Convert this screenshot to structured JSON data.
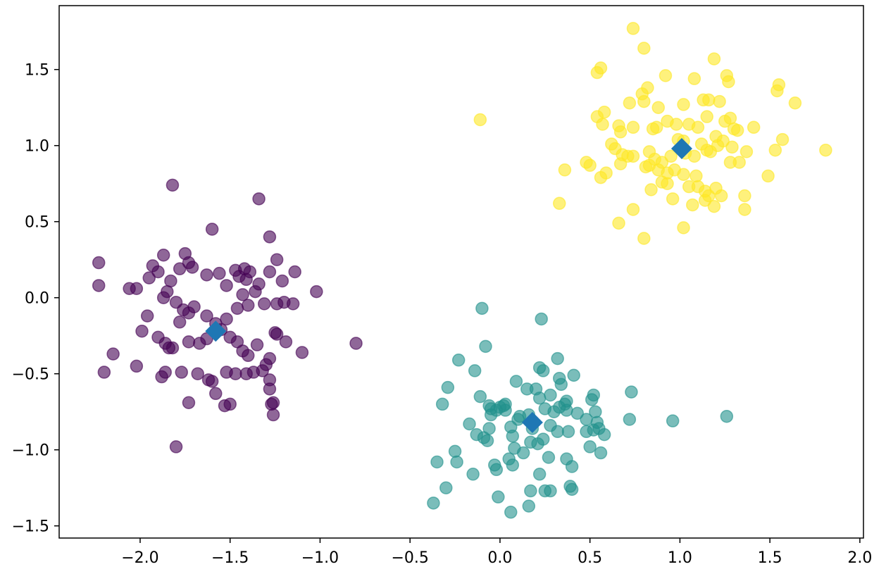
{
  "chart_data": {
    "type": "scatter",
    "title": "",
    "xlabel": "",
    "ylabel": "",
    "xlim": [
      -2.45,
      2.02
    ],
    "ylim": [
      -1.58,
      1.92
    ],
    "xticks": [
      -2.0,
      -1.5,
      -1.0,
      -0.5,
      0.0,
      0.5,
      1.0,
      1.5,
      2.0
    ],
    "xtick_labels": [
      "−2.0",
      "−1.5",
      "−1.0",
      "−0.5",
      "0.0",
      "0.5",
      "1.0",
      "1.5",
      "2.0"
    ],
    "yticks": [
      -1.5,
      -1.0,
      -0.5,
      0.0,
      0.5,
      1.0,
      1.5
    ],
    "ytick_labels": [
      "−1.5",
      "−1.0",
      "−0.5",
      "0.0",
      "0.5",
      "1.0",
      "1.5"
    ],
    "grid": false,
    "legend": "none",
    "series": [
      {
        "cluster": 0,
        "color": "#440154",
        "alpha": 0.6,
        "marker": "circle",
        "points": [
          [
            -1.82,
            0.74
          ],
          [
            -1.34,
            0.65
          ],
          [
            -1.6,
            0.45
          ],
          [
            -1.28,
            0.4
          ],
          [
            -2.23,
            0.23
          ],
          [
            -2.23,
            0.08
          ],
          [
            -2.06,
            0.06
          ],
          [
            -2.02,
            0.06
          ],
          [
            -1.95,
            0.13
          ],
          [
            -1.93,
            0.21
          ],
          [
            -1.9,
            0.17
          ],
          [
            -1.87,
            0.28
          ],
          [
            -1.83,
            0.11
          ],
          [
            -1.78,
            0.19
          ],
          [
            -1.75,
            0.29
          ],
          [
            -1.73,
            0.23
          ],
          [
            -1.71,
            0.2
          ],
          [
            -1.63,
            0.15
          ],
          [
            -1.56,
            0.16
          ],
          [
            -1.52,
            0.08
          ],
          [
            -1.47,
            0.18
          ],
          [
            -1.42,
            0.19
          ],
          [
            -1.39,
            0.17
          ],
          [
            -1.34,
            0.09
          ],
          [
            -1.28,
            0.17
          ],
          [
            -1.24,
            0.25
          ],
          [
            -1.21,
            0.11
          ],
          [
            -1.14,
            0.17
          ],
          [
            -1.02,
            0.04
          ],
          [
            -1.87,
            0.0
          ],
          [
            -1.85,
            0.04
          ],
          [
            -1.8,
            -0.03
          ],
          [
            -1.76,
            -0.08
          ],
          [
            -1.73,
            -0.1
          ],
          [
            -1.7,
            -0.06
          ],
          [
            -1.63,
            -0.12
          ],
          [
            -1.58,
            -0.17
          ],
          [
            -1.52,
            -0.14
          ],
          [
            -1.46,
            -0.07
          ],
          [
            -1.43,
            0.02
          ],
          [
            -1.4,
            -0.05
          ],
          [
            -1.36,
            0.04
          ],
          [
            -1.31,
            -0.04
          ],
          [
            -1.24,
            -0.04
          ],
          [
            -1.2,
            -0.03
          ],
          [
            -1.15,
            -0.04
          ],
          [
            -1.96,
            -0.12
          ],
          [
            -1.99,
            -0.22
          ],
          [
            -1.9,
            -0.26
          ],
          [
            -1.86,
            -0.3
          ],
          [
            -1.82,
            -0.33
          ],
          [
            -1.78,
            -0.16
          ],
          [
            -1.73,
            -0.29
          ],
          [
            -1.67,
            -0.3
          ],
          [
            -1.63,
            -0.27
          ],
          [
            -1.55,
            -0.21
          ],
          [
            -1.5,
            -0.26
          ],
          [
            -1.46,
            -0.29
          ],
          [
            -1.43,
            -0.35
          ],
          [
            -1.4,
            -0.38
          ],
          [
            -1.35,
            -0.31
          ],
          [
            -1.3,
            -0.44
          ],
          [
            -1.28,
            -0.4
          ],
          [
            -1.25,
            -0.23
          ],
          [
            -1.24,
            -0.24
          ],
          [
            -1.19,
            -0.29
          ],
          [
            -1.1,
            -0.36
          ],
          [
            -0.8,
            -0.3
          ],
          [
            -2.15,
            -0.37
          ],
          [
            -2.2,
            -0.49
          ],
          [
            -2.02,
            -0.45
          ],
          [
            -1.88,
            -0.52
          ],
          [
            -1.86,
            -0.49
          ],
          [
            -1.77,
            -0.49
          ],
          [
            -1.68,
            -0.5
          ],
          [
            -1.6,
            -0.55
          ],
          [
            -1.62,
            -0.54
          ],
          [
            -1.58,
            -0.63
          ],
          [
            -1.52,
            -0.49
          ],
          [
            -1.47,
            -0.5
          ],
          [
            -1.41,
            -0.5
          ],
          [
            -1.37,
            -0.49
          ],
          [
            -1.32,
            -0.48
          ],
          [
            -1.28,
            -0.54
          ],
          [
            -1.28,
            -0.6
          ],
          [
            -1.27,
            -0.7
          ],
          [
            -1.26,
            -0.77
          ],
          [
            -1.26,
            -0.69
          ],
          [
            -1.53,
            -0.71
          ],
          [
            -1.5,
            -0.7
          ],
          [
            -1.73,
            -0.69
          ],
          [
            -1.8,
            -0.98
          ],
          [
            -1.84,
            -0.33
          ],
          [
            -1.45,
            0.14
          ],
          [
            -1.41,
            0.12
          ]
        ]
      },
      {
        "cluster": 1,
        "color": "#21918c",
        "alpha": 0.6,
        "marker": "circle",
        "points": [
          [
            -0.1,
            -0.07
          ],
          [
            0.23,
            -0.14
          ],
          [
            -0.08,
            -0.32
          ],
          [
            -0.23,
            -0.41
          ],
          [
            -0.14,
            -0.48
          ],
          [
            0.22,
            -0.46
          ],
          [
            0.24,
            -0.48
          ],
          [
            0.32,
            -0.4
          ],
          [
            0.33,
            -0.53
          ],
          [
            0.34,
            -0.57
          ],
          [
            0.41,
            -0.51
          ],
          [
            -0.29,
            -0.59
          ],
          [
            -0.32,
            -0.7
          ],
          [
            -0.11,
            -0.65
          ],
          [
            -0.06,
            -0.71
          ],
          [
            -0.05,
            -0.73
          ],
          [
            -0.02,
            -0.74
          ],
          [
            0.0,
            -0.72
          ],
          [
            0.02,
            -0.71
          ],
          [
            0.03,
            -0.7
          ],
          [
            0.09,
            -0.55
          ],
          [
            0.15,
            -0.6
          ],
          [
            0.2,
            -0.6
          ],
          [
            0.22,
            -0.66
          ],
          [
            0.28,
            -0.64
          ],
          [
            0.25,
            -0.73
          ],
          [
            0.3,
            -0.75
          ],
          [
            0.33,
            -0.72
          ],
          [
            0.36,
            -0.7
          ],
          [
            0.37,
            -0.68
          ],
          [
            0.37,
            -0.74
          ],
          [
            0.43,
            -0.76
          ],
          [
            0.48,
            -0.8
          ],
          [
            0.51,
            -0.67
          ],
          [
            0.52,
            -0.64
          ],
          [
            0.53,
            -0.75
          ],
          [
            0.54,
            -0.82
          ],
          [
            0.55,
            -0.86
          ],
          [
            0.58,
            -0.9
          ],
          [
            0.73,
            -0.62
          ],
          [
            0.72,
            -0.8
          ],
          [
            0.96,
            -0.81
          ],
          [
            1.26,
            -0.78
          ],
          [
            -0.17,
            -0.83
          ],
          [
            -0.13,
            -0.9
          ],
          [
            -0.09,
            -0.92
          ],
          [
            -0.07,
            -0.94
          ],
          [
            -0.06,
            -0.86
          ],
          [
            -0.05,
            -0.77
          ],
          [
            0.06,
            -0.85
          ],
          [
            0.07,
            -0.91
          ],
          [
            0.1,
            -0.8
          ],
          [
            0.11,
            -0.78
          ],
          [
            0.16,
            -0.77
          ],
          [
            0.18,
            -0.86
          ],
          [
            0.21,
            -0.96
          ],
          [
            0.24,
            -0.93
          ],
          [
            0.28,
            -0.84
          ],
          [
            0.32,
            -0.88
          ],
          [
            0.38,
            -0.88
          ],
          [
            0.48,
            -0.88
          ],
          [
            0.52,
            -0.87
          ],
          [
            0.5,
            -0.98
          ],
          [
            0.56,
            -1.02
          ],
          [
            -0.35,
            -1.08
          ],
          [
            -0.25,
            -1.01
          ],
          [
            -0.24,
            -1.08
          ],
          [
            -0.15,
            -1.16
          ],
          [
            -0.03,
            -1.1
          ],
          [
            -0.02,
            -1.13
          ],
          [
            0.05,
            -1.06
          ],
          [
            0.07,
            -1.1
          ],
          [
            0.08,
            -0.99
          ],
          [
            0.13,
            -1.02
          ],
          [
            0.17,
            -0.95
          ],
          [
            0.27,
            -1.05
          ],
          [
            0.37,
            -1.06
          ],
          [
            0.4,
            -1.11
          ],
          [
            0.22,
            -1.16
          ],
          [
            0.25,
            -1.27
          ],
          [
            0.17,
            -1.27
          ],
          [
            0.28,
            -1.27
          ],
          [
            0.39,
            -1.24
          ],
          [
            0.4,
            -1.26
          ],
          [
            -0.3,
            -1.25
          ],
          [
            -0.37,
            -1.35
          ],
          [
            -0.01,
            -1.31
          ],
          [
            0.06,
            -1.41
          ],
          [
            0.16,
            -1.37
          ],
          [
            0.03,
            -0.74
          ]
        ]
      },
      {
        "cluster": 2,
        "color": "#fde725",
        "alpha": 0.6,
        "marker": "circle",
        "points": [
          [
            0.74,
            1.77
          ],
          [
            0.8,
            1.64
          ],
          [
            0.56,
            1.51
          ],
          [
            0.54,
            1.48
          ],
          [
            0.92,
            1.46
          ],
          [
            1.08,
            1.44
          ],
          [
            1.19,
            1.57
          ],
          [
            1.26,
            1.46
          ],
          [
            1.27,
            1.42
          ],
          [
            1.55,
            1.4
          ],
          [
            1.54,
            1.36
          ],
          [
            1.64,
            1.28
          ],
          [
            0.79,
            1.34
          ],
          [
            0.8,
            1.29
          ],
          [
            0.82,
            1.38
          ],
          [
            0.88,
            1.25
          ],
          [
            0.72,
            1.28
          ],
          [
            0.58,
            1.22
          ],
          [
            0.54,
            1.19
          ],
          [
            0.57,
            1.14
          ],
          [
            -0.11,
            1.17
          ],
          [
            0.66,
            1.13
          ],
          [
            0.67,
            1.09
          ],
          [
            0.74,
            1.12
          ],
          [
            0.85,
            1.11
          ],
          [
            0.87,
            1.12
          ],
          [
            0.93,
            1.16
          ],
          [
            0.98,
            1.14
          ],
          [
            1.02,
            1.27
          ],
          [
            1.05,
            1.14
          ],
          [
            1.1,
            1.12
          ],
          [
            1.13,
            1.3
          ],
          [
            1.15,
            1.19
          ],
          [
            1.16,
            1.3
          ],
          [
            1.2,
            1.06
          ],
          [
            1.22,
            1.29
          ],
          [
            1.25,
            1.16
          ],
          [
            1.28,
            1.18
          ],
          [
            1.3,
            1.11
          ],
          [
            1.32,
            1.1
          ],
          [
            1.41,
            1.12
          ],
          [
            0.62,
            1.01
          ],
          [
            0.64,
            0.98
          ],
          [
            0.68,
            0.94
          ],
          [
            0.71,
            0.93
          ],
          [
            0.74,
            0.93
          ],
          [
            0.83,
            0.96
          ],
          [
            0.86,
            0.91
          ],
          [
            0.9,
            0.89
          ],
          [
            0.95,
            0.93
          ],
          [
            0.99,
            1.04
          ],
          [
            1.02,
            1.03
          ],
          [
            1.03,
            0.95
          ],
          [
            1.08,
            0.93
          ],
          [
            1.12,
            1.01
          ],
          [
            1.15,
            0.97
          ],
          [
            1.17,
            0.96
          ],
          [
            1.21,
            1.0
          ],
          [
            1.24,
            1.03
          ],
          [
            1.29,
            0.99
          ],
          [
            1.33,
            0.89
          ],
          [
            1.37,
            0.96
          ],
          [
            1.53,
            0.97
          ],
          [
            1.57,
            1.04
          ],
          [
            1.81,
            0.97
          ],
          [
            0.36,
            0.84
          ],
          [
            0.48,
            0.89
          ],
          [
            0.5,
            0.87
          ],
          [
            0.56,
            0.79
          ],
          [
            0.59,
            0.82
          ],
          [
            0.67,
            0.88
          ],
          [
            0.81,
            0.86
          ],
          [
            0.83,
            0.87
          ],
          [
            0.88,
            0.84
          ],
          [
            0.9,
            0.76
          ],
          [
            0.93,
            0.75
          ],
          [
            0.97,
            0.84
          ],
          [
            1.02,
            0.81
          ],
          [
            1.05,
            0.73
          ],
          [
            1.1,
            0.73
          ],
          [
            1.14,
            0.7
          ],
          [
            1.16,
            0.67
          ],
          [
            1.2,
            0.72
          ],
          [
            1.23,
            0.67
          ],
          [
            1.28,
            0.89
          ],
          [
            1.36,
            0.67
          ],
          [
            1.49,
            0.8
          ],
          [
            0.33,
            0.62
          ],
          [
            0.66,
            0.49
          ],
          [
            0.74,
            0.58
          ],
          [
            0.96,
            0.65
          ],
          [
            1.07,
            0.61
          ],
          [
            1.14,
            0.64
          ],
          [
            1.19,
            0.6
          ],
          [
            1.36,
            0.58
          ],
          [
            0.8,
            0.39
          ],
          [
            1.02,
            0.46
          ],
          [
            0.93,
            0.82
          ],
          [
            1.09,
            0.8
          ],
          [
            0.84,
            0.71
          ]
        ]
      }
    ],
    "centroids": {
      "color": "#1f77b4",
      "marker": "diamond",
      "points": [
        [
          -1.58,
          -0.22
        ],
        [
          0.18,
          -0.82
        ],
        [
          1.01,
          0.98
        ]
      ]
    }
  }
}
